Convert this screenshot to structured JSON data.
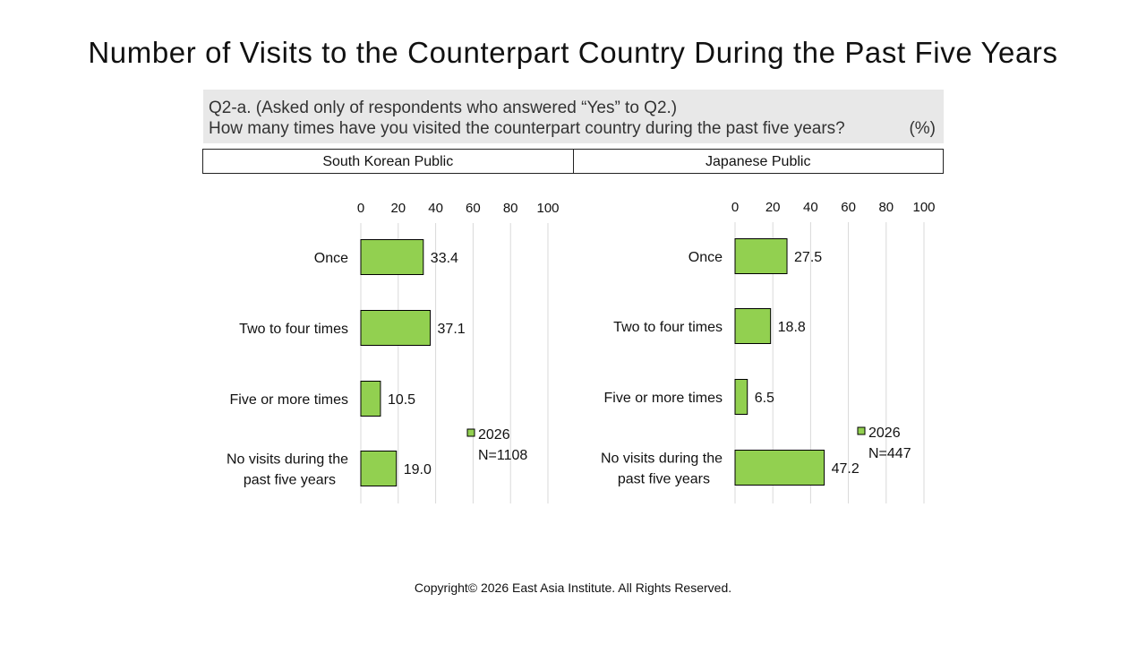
{
  "page": {
    "title": "Number of Visits to the Counterpart Country During the Past Five Years",
    "question_line1": "Q2-a. (Asked only of respondents who answered “Yes” to Q2.)",
    "question_line2": "How many times have you visited the counterpart country during the past five years?",
    "unit": "(%)",
    "copyright": "Copyright© 2026 East Asia Institute. All Rights Reserved."
  },
  "colors": {
    "bar_fill": "#92d050",
    "bar_stroke": "#000000",
    "grid": "#d9d9d9"
  },
  "chart_data": [
    {
      "type": "bar",
      "orientation": "horizontal",
      "panel_title": "South Korean Public",
      "categories": [
        "Once",
        "Two to four times",
        "Five or more times",
        "No visits during the past five years"
      ],
      "category_lines": [
        [
          "Once"
        ],
        [
          "Two to four times"
        ],
        [
          "Five or more times"
        ],
        [
          "No visits during the",
          "past five years"
        ]
      ],
      "series": [
        {
          "name": "2026",
          "values": [
            33.4,
            37.1,
            10.5,
            19.0
          ],
          "labels": [
            "33.4",
            "37.1",
            "10.5",
            "19.0"
          ]
        }
      ],
      "legend_note": "N=1108",
      "xlim": [
        0,
        100
      ],
      "xticks": [
        0,
        20,
        40,
        60,
        80,
        100
      ],
      "grid": true
    },
    {
      "type": "bar",
      "orientation": "horizontal",
      "panel_title": "Japanese Public",
      "categories": [
        "Once",
        "Two to four times",
        "Five or more times",
        "No visits during the past five years"
      ],
      "category_lines": [
        [
          "Once"
        ],
        [
          "Two to four times"
        ],
        [
          "Five or more times"
        ],
        [
          "No visits during the",
          "past five years"
        ]
      ],
      "series": [
        {
          "name": "2026",
          "values": [
            27.5,
            18.8,
            6.5,
            47.2
          ],
          "labels": [
            "27.5",
            "18.8",
            "6.5",
            "47.2"
          ]
        }
      ],
      "legend_note": "N=447",
      "xlim": [
        0,
        100
      ],
      "xticks": [
        0,
        20,
        40,
        60,
        80,
        100
      ],
      "grid": true
    }
  ]
}
